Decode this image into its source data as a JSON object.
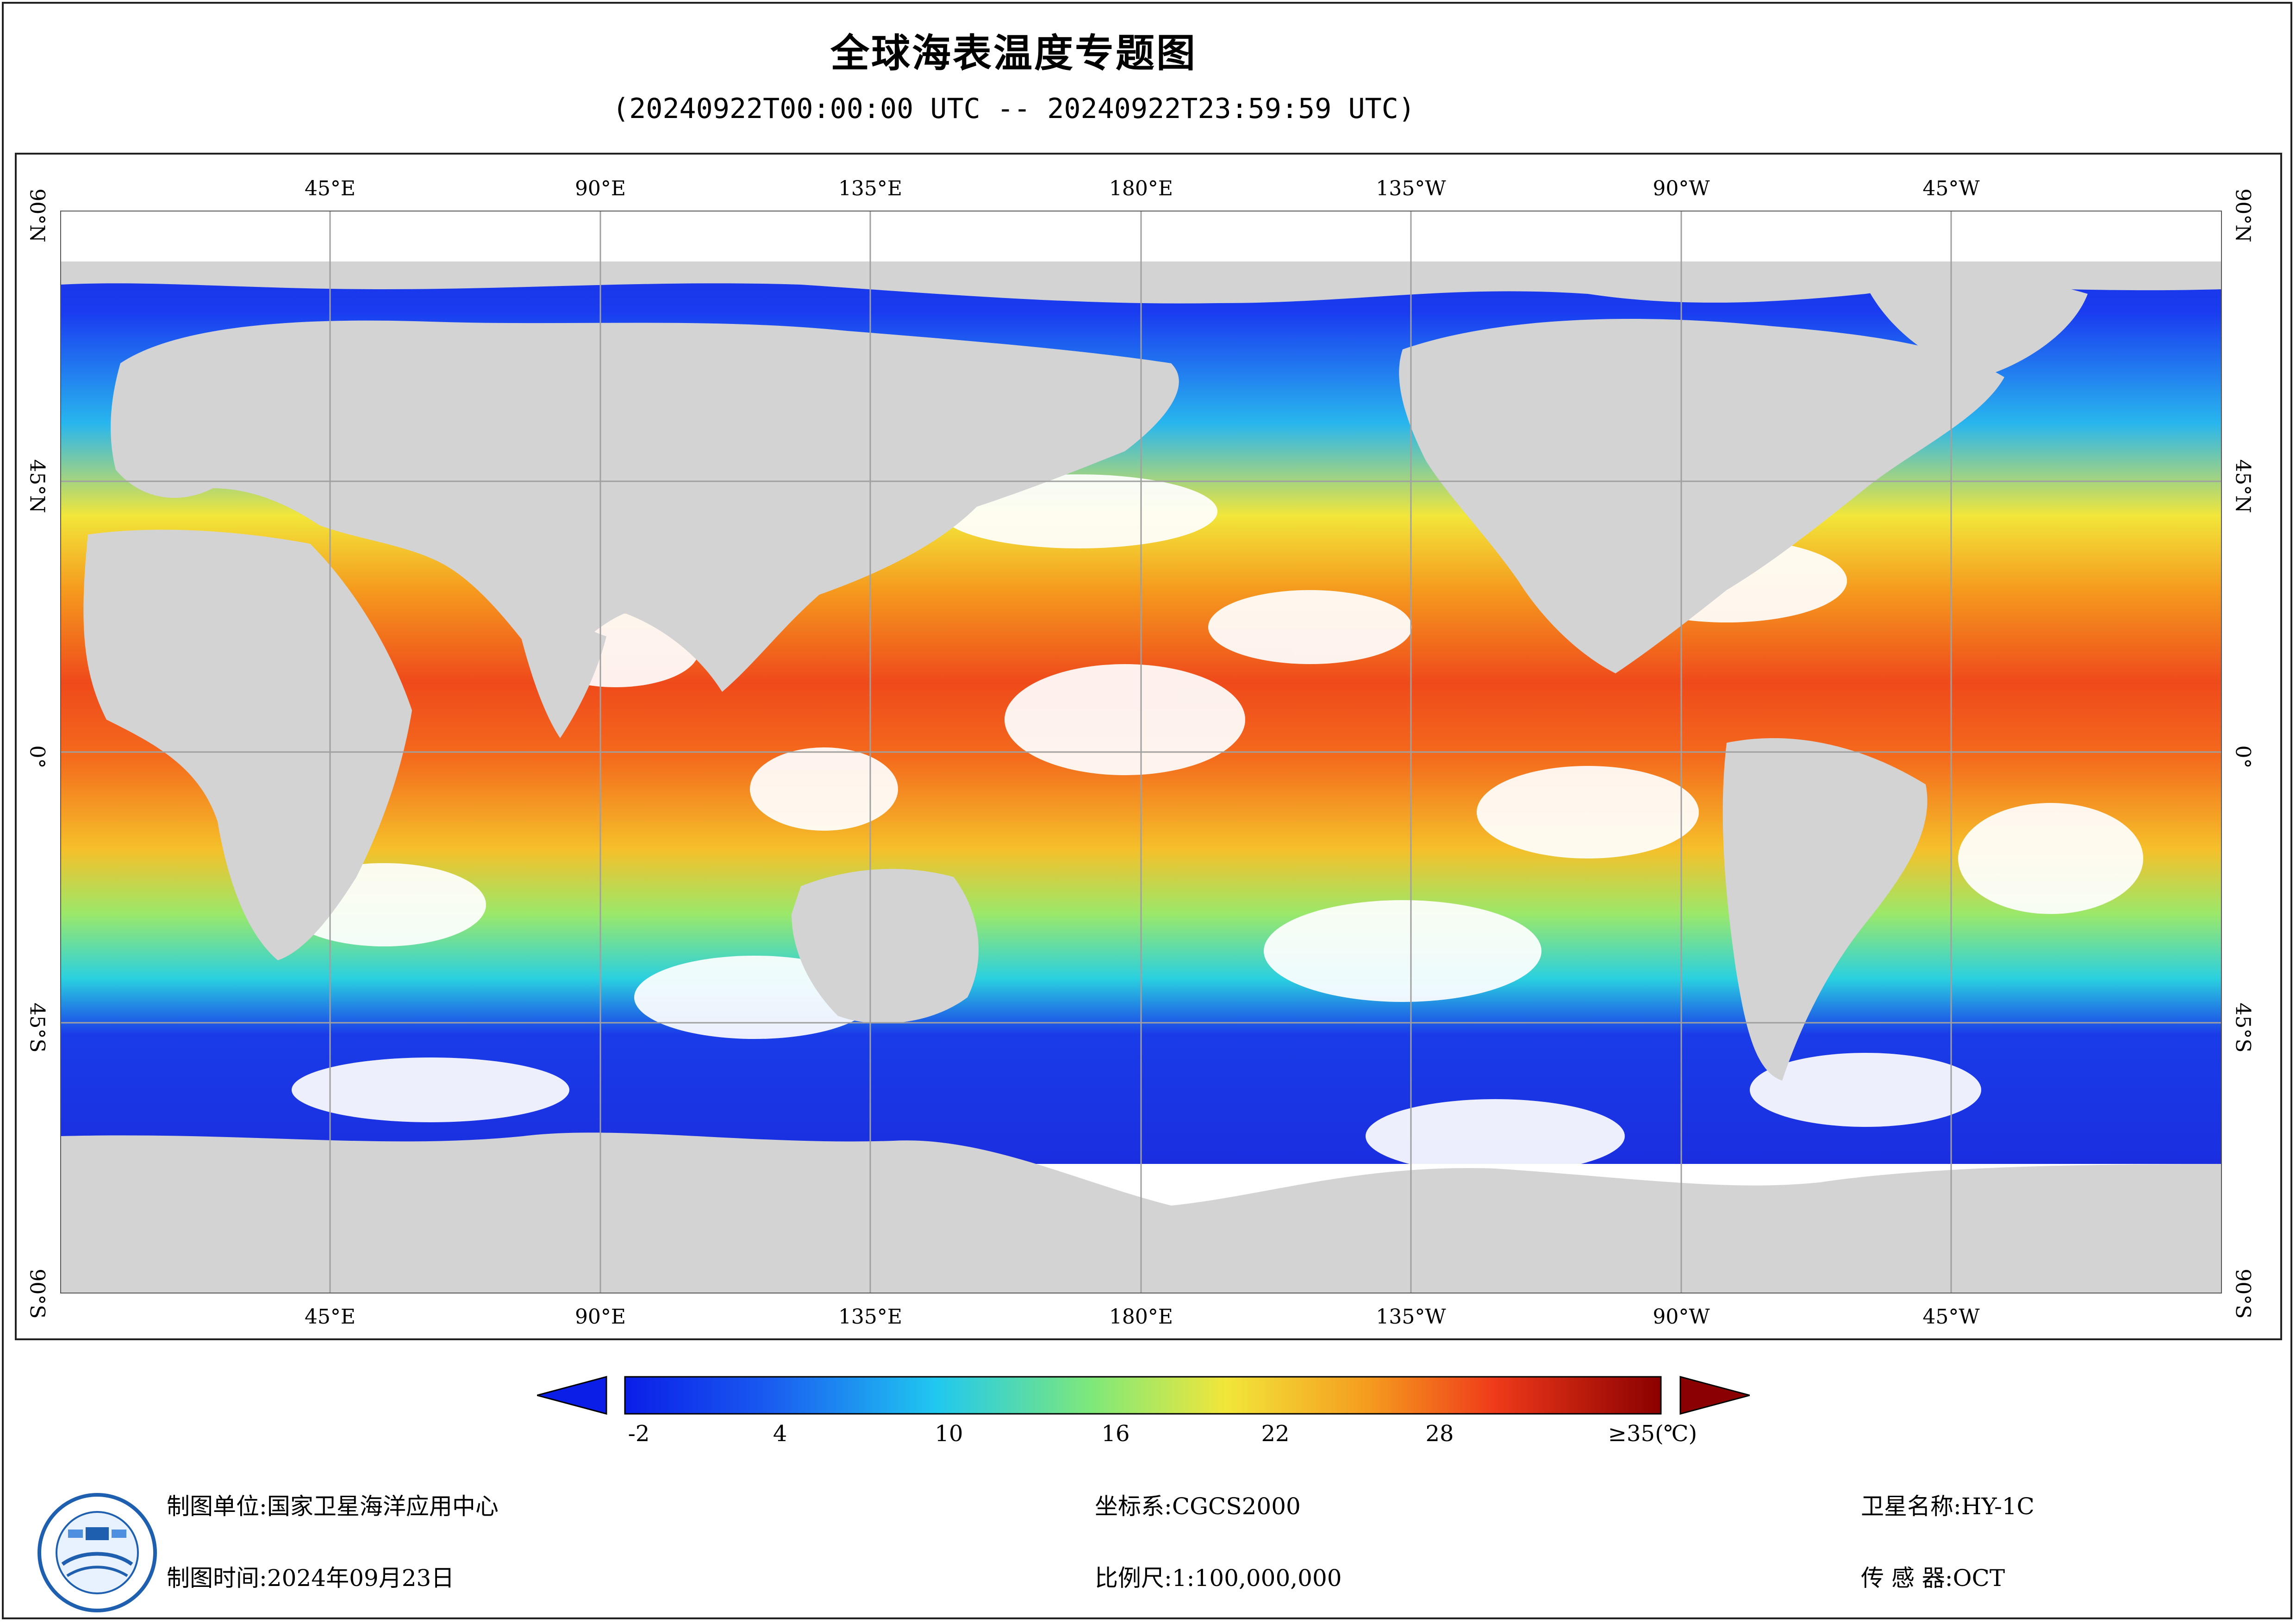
{
  "title": "全球海表温度专题图",
  "time_range": "(20240922T00:00:00 UTC -- 20240922T23:59:59 UTC)",
  "lon_ticks": [
    "45°E",
    "90°E",
    "135°E",
    "180°E",
    "135°W",
    "90°W",
    "45°W"
  ],
  "lat_ticks": [
    "90°N",
    "45°N",
    "0°",
    "45°S",
    "90°S"
  ],
  "legend": {
    "labels": [
      "-2",
      "4",
      "10",
      "16",
      "22",
      "28",
      "≥35(℃)"
    ],
    "min": -2,
    "max": 35,
    "unit": "℃"
  },
  "footer": {
    "producer_label": "制图单位:",
    "producer": "国家卫星海洋应用中心",
    "date_label": "制图时间:",
    "date": "2024年09月23日",
    "crs_label": "坐标系:",
    "crs": "CGCS2000",
    "scale_label": "比例尺:",
    "scale": "1:100,000,000",
    "satellite_label": "卫星名称:",
    "satellite": "HY-1C",
    "sensor_label": "传 感 器:",
    "sensor": "OCT"
  },
  "colors": {
    "land": "#d3d3d3",
    "cloud": "#ffffff",
    "cold": "#1a2ee0",
    "cool": "#20c8e8",
    "mild": "#9be86a",
    "warm": "#f2e63a",
    "hot": "#f59a1e",
    "very_hot": "#f0451a",
    "extreme": "#8b0000"
  }
}
